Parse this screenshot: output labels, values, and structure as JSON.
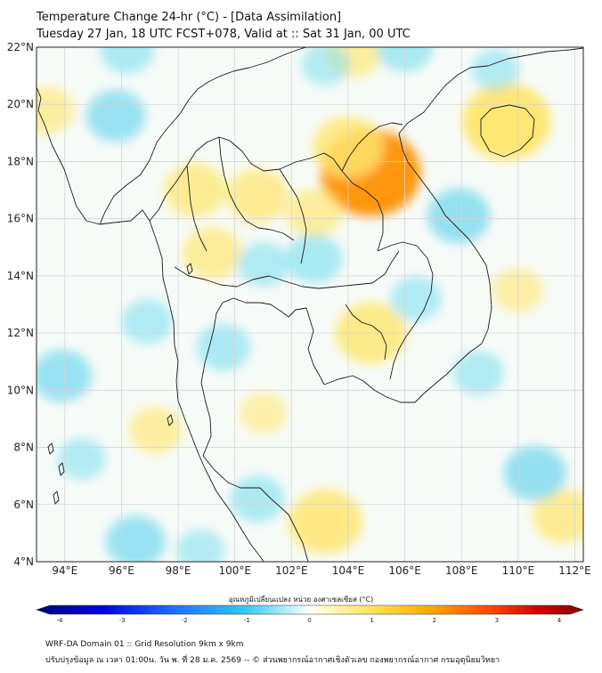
{
  "header": {
    "title_line1": "Temperature Change 24-hr (°C) - [Data Assimilation]",
    "title_line2": "Tuesday 27 Jan, 18 UTC FCST+078, Valid at :: Sat 31 Jan, 00 UTC"
  },
  "map": {
    "lat_labels": [
      "22°N",
      "20°N",
      "18°N",
      "16°N",
      "14°N",
      "12°N",
      "10°N",
      "8°N",
      "6°N",
      "4°N"
    ],
    "lon_labels": [
      "94°E",
      "96°E",
      "98°E",
      "100°E",
      "102°E",
      "104°E",
      "106°E",
      "108°E",
      "110°E",
      "112°E"
    ],
    "lat_range": [
      4,
      22
    ],
    "lon_range": [
      93,
      112.3
    ],
    "anomalies": [
      {
        "kind": "warm",
        "lon": 104.8,
        "lat": 17.6,
        "value": 2.2
      },
      {
        "kind": "warm",
        "lon": 104.0,
        "lat": 18.5,
        "value": 1.2
      },
      {
        "kind": "warm",
        "lon": 109.6,
        "lat": 19.4,
        "value": 1.8
      },
      {
        "kind": "warm",
        "lon": 98.6,
        "lat": 17.0,
        "value": 0.9
      },
      {
        "kind": "warm",
        "lon": 100.8,
        "lat": 16.8,
        "value": 0.9
      },
      {
        "kind": "warm",
        "lon": 102.8,
        "lat": 16.2,
        "value": 0.7
      },
      {
        "kind": "warm",
        "lon": 99.2,
        "lat": 14.8,
        "value": 0.8
      },
      {
        "kind": "warm",
        "lon": 104.8,
        "lat": 12.0,
        "value": 1.2
      },
      {
        "kind": "warm",
        "lon": 103.2,
        "lat": 5.4,
        "value": 1.3
      },
      {
        "kind": "warm",
        "lon": 97.2,
        "lat": 8.6,
        "value": 0.6
      },
      {
        "kind": "warm",
        "lon": 104.2,
        "lat": 21.8,
        "value": 0.7
      },
      {
        "kind": "warm",
        "lon": 111.6,
        "lat": 5.6,
        "value": 0.9
      },
      {
        "kind": "warm",
        "lon": 110.0,
        "lat": 13.5,
        "value": 0.5
      },
      {
        "kind": "warm",
        "lon": 93.4,
        "lat": 19.8,
        "value": 0.6
      },
      {
        "kind": "warm",
        "lon": 101.0,
        "lat": 9.2,
        "value": 0.4
      },
      {
        "kind": "cold",
        "lon": 95.8,
        "lat": 19.6,
        "value": -0.8
      },
      {
        "kind": "cold",
        "lon": 96.2,
        "lat": 21.9,
        "value": -0.6
      },
      {
        "kind": "cold",
        "lon": 106.0,
        "lat": 22.0,
        "value": -0.7
      },
      {
        "kind": "cold",
        "lon": 107.9,
        "lat": 16.1,
        "value": -0.9
      },
      {
        "kind": "cold",
        "lon": 102.8,
        "lat": 14.6,
        "value": -0.7
      },
      {
        "kind": "cold",
        "lon": 101.0,
        "lat": 14.4,
        "value": -0.5
      },
      {
        "kind": "cold",
        "lon": 93.9,
        "lat": 10.5,
        "value": -0.8
      },
      {
        "kind": "cold",
        "lon": 96.9,
        "lat": 12.4,
        "value": -0.5
      },
      {
        "kind": "cold",
        "lon": 110.6,
        "lat": 7.1,
        "value": -0.9
      },
      {
        "kind": "cold",
        "lon": 96.5,
        "lat": 4.7,
        "value": -0.8
      },
      {
        "kind": "cold",
        "lon": 99.6,
        "lat": 11.5,
        "value": -0.6
      },
      {
        "kind": "cold",
        "lon": 100.8,
        "lat": 6.2,
        "value": -0.6
      },
      {
        "kind": "cold",
        "lon": 94.6,
        "lat": 7.6,
        "value": -0.4
      },
      {
        "kind": "cold",
        "lon": 108.6,
        "lat": 10.6,
        "value": -0.5
      },
      {
        "kind": "cold",
        "lon": 106.4,
        "lat": 13.2,
        "value": -0.5
      },
      {
        "kind": "cold",
        "lon": 109.2,
        "lat": 21.2,
        "value": -0.4
      },
      {
        "kind": "cold",
        "lon": 103.2,
        "lat": 21.4,
        "value": -0.4
      },
      {
        "kind": "cold",
        "lon": 98.8,
        "lat": 4.4,
        "value": -0.4
      }
    ]
  },
  "colorbar": {
    "title": "อุณหภูมิเปลี่ยนแปลง หน่วย องศาเซลเซียส (°C)",
    "min": -4,
    "max": 4,
    "ticks": [
      "-4",
      "-3",
      "-2",
      "-1",
      "0",
      "1",
      "2",
      "3",
      "4"
    ],
    "colors": {
      "cold_strong": "#00007f",
      "cold": "#1e90ff",
      "cool": "#80e0f0",
      "neutral": "#ffffff",
      "warm": "#ffe66e",
      "hot": "#ff9000",
      "hot_strong": "#7f0000"
    }
  },
  "footer": {
    "line1": "WRF-DA Domain 01 :: Grid Resolution 9km x 9km",
    "line2": "ปรับปรุงข้อมูล ณ เวลา 01:00น. วัน พ. ที่ 28 ม.ค. 2569 -- © ส่วนพยากรณ์อากาศเชิงตัวเลข กองพยากรณ์อากาศ กรมอุตุนิยมวิทยา"
  }
}
